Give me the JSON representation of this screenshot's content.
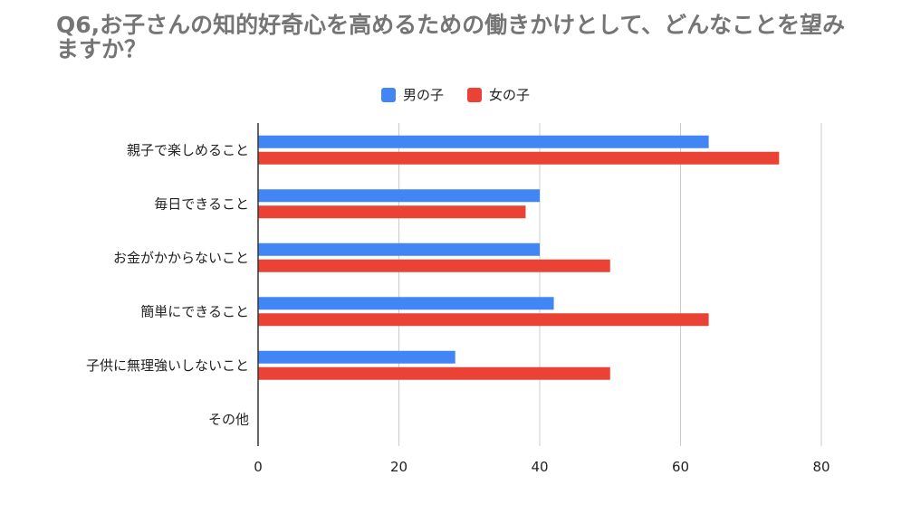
{
  "chart_data": {
    "type": "bar",
    "orientation": "horizontal",
    "title": "Q6,お子さんの知的好奇心を高めるための働きかけとして、どんなことを望みますか？",
    "categories": [
      "親子で楽しめること",
      "毎日できること",
      "お金がかからないこと",
      "簡単にできること",
      "子供に無理強いしないこと",
      "その他"
    ],
    "series": [
      {
        "name": "男の子",
        "color": "#4285f4",
        "values": [
          64,
          40,
          40,
          42,
          28,
          0
        ]
      },
      {
        "name": "女の子",
        "color": "#ea4335",
        "values": [
          74,
          38,
          50,
          64,
          50,
          0
        ]
      }
    ],
    "xlim": [
      0,
      80
    ],
    "x_ticks": [
      0,
      20,
      40,
      60,
      80
    ],
    "grid": "vertical",
    "legend_position": "top-center"
  }
}
